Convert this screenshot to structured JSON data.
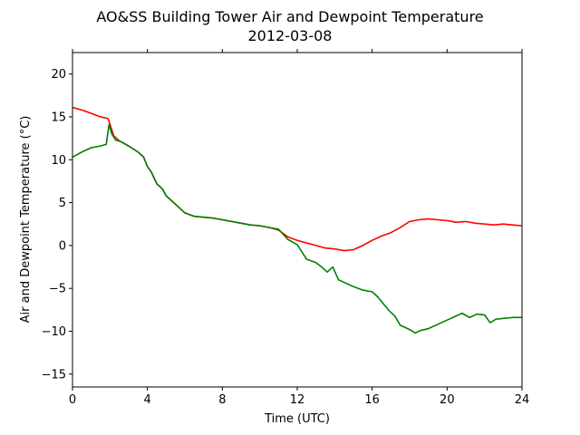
{
  "chart_data": {
    "type": "line",
    "title": "AO&SS Building Tower Air and Dewpoint Temperature",
    "subtitle": "2012-03-08",
    "xlabel": "Time (UTC)",
    "ylabel": "Air and Dewpoint Temperature (°C)",
    "xlim": [
      0,
      24
    ],
    "ylim": [
      -16.5,
      22.5
    ],
    "xticks": [
      0,
      4,
      8,
      12,
      16,
      20,
      24
    ],
    "yticks": [
      -15,
      -10,
      -5,
      0,
      5,
      10,
      15,
      20
    ],
    "grid": false,
    "series": [
      {
        "color": "#ff0000",
        "x": [
          0,
          0.5,
          1,
          1.5,
          1.9,
          2.2,
          2.5,
          3,
          3.5,
          3.8,
          4,
          4.2,
          4.5,
          4.8,
          5,
          5.5,
          6,
          6.5,
          7,
          7.5,
          8,
          8.5,
          9,
          9.5,
          10,
          10.5,
          11,
          11.5,
          12,
          12.5,
          13,
          13.5,
          14,
          14.5,
          15,
          15.5,
          16,
          16.5,
          17,
          17.5,
          18,
          18.5,
          19,
          19.5,
          20,
          20.5,
          21,
          21.5,
          22,
          22.5,
          23,
          23.5,
          24
        ],
        "y": [
          16.1,
          15.8,
          15.4,
          15.0,
          14.8,
          12.8,
          12.2,
          11.6,
          10.9,
          10.3,
          9.2,
          8.6,
          7.2,
          6.6,
          5.8,
          4.8,
          3.8,
          3.4,
          3.3,
          3.2,
          3.0,
          2.8,
          2.6,
          2.4,
          2.3,
          2.1,
          1.8,
          1.0,
          0.6,
          0.3,
          0.0,
          -0.3,
          -0.4,
          -0.6,
          -0.5,
          0.0,
          0.6,
          1.1,
          1.5,
          2.1,
          2.8,
          3.0,
          3.1,
          3.0,
          2.9,
          2.7,
          2.8,
          2.6,
          2.5,
          2.4,
          2.5,
          2.4,
          2.3
        ]
      },
      {
        "color": "#008000",
        "x": [
          0,
          0.5,
          1,
          1.5,
          1.8,
          1.95,
          2.1,
          2.3,
          2.6,
          3,
          3.5,
          3.8,
          4,
          4.2,
          4.5,
          4.8,
          5,
          5.5,
          6,
          6.5,
          7,
          7.5,
          8,
          8.5,
          9,
          9.5,
          10,
          10.5,
          11,
          11.5,
          12,
          12.5,
          13,
          13.3,
          13.6,
          13.9,
          14.2,
          14.5,
          15,
          15.5,
          16,
          16.3,
          16.6,
          16.9,
          17.2,
          17.5,
          18,
          18.3,
          18.6,
          19,
          19.5,
          20,
          20.5,
          20.8,
          21.2,
          21.6,
          22,
          22.3,
          22.6,
          23,
          23.5,
          24
        ],
        "y": [
          10.3,
          10.9,
          11.4,
          11.6,
          11.8,
          14.1,
          13.0,
          12.3,
          12.1,
          11.6,
          10.9,
          10.3,
          9.2,
          8.6,
          7.2,
          6.6,
          5.8,
          4.8,
          3.8,
          3.4,
          3.3,
          3.2,
          3.0,
          2.8,
          2.6,
          2.4,
          2.3,
          2.1,
          1.9,
          0.7,
          0.1,
          -1.6,
          -2.0,
          -2.5,
          -3.1,
          -2.5,
          -4.0,
          -4.3,
          -4.8,
          -5.2,
          -5.4,
          -6.0,
          -6.8,
          -7.6,
          -8.2,
          -9.3,
          -9.8,
          -10.2,
          -9.9,
          -9.7,
          -9.2,
          -8.7,
          -8.2,
          -7.9,
          -8.4,
          -8.0,
          -8.1,
          -9.0,
          -8.6,
          -8.5,
          -8.4,
          -8.4
        ]
      }
    ]
  }
}
